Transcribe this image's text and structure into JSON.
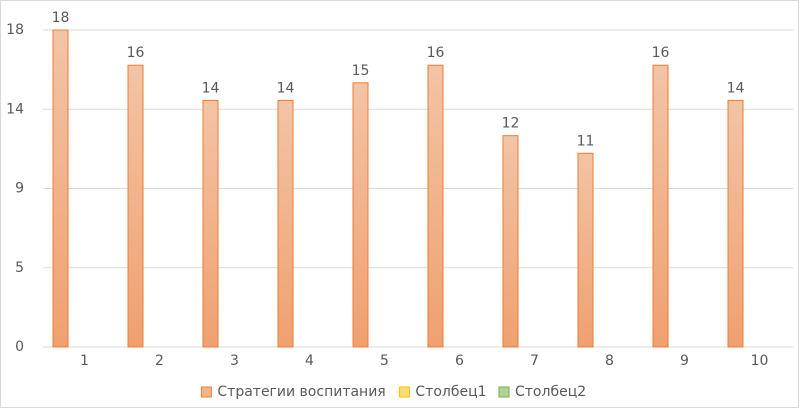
{
  "chart_data": {
    "type": "bar",
    "categories": [
      "1",
      "2",
      "3",
      "4",
      "5",
      "6",
      "7",
      "8",
      "9",
      "10"
    ],
    "series": [
      {
        "name": "Стратегии воспитания",
        "color": "#ed7d31",
        "values": [
          18,
          16,
          14,
          14,
          15,
          16,
          12,
          11,
          16,
          14
        ]
      },
      {
        "name": "Столбец1",
        "color": "#ffc000",
        "values": [
          null,
          null,
          null,
          null,
          null,
          null,
          null,
          null,
          null,
          null
        ]
      },
      {
        "name": "Столбец2",
        "color": "#70ad47",
        "values": [
          null,
          null,
          null,
          null,
          null,
          null,
          null,
          null,
          null,
          null
        ]
      }
    ],
    "ylim": [
      0,
      18
    ],
    "yticks": [
      0,
      {
        "value": 4.5,
        "label": "5"
      },
      9,
      {
        "value": 13.5,
        "label": "14"
      },
      18
    ],
    "grid": true,
    "data_labels": true,
    "legend": "bottom"
  }
}
